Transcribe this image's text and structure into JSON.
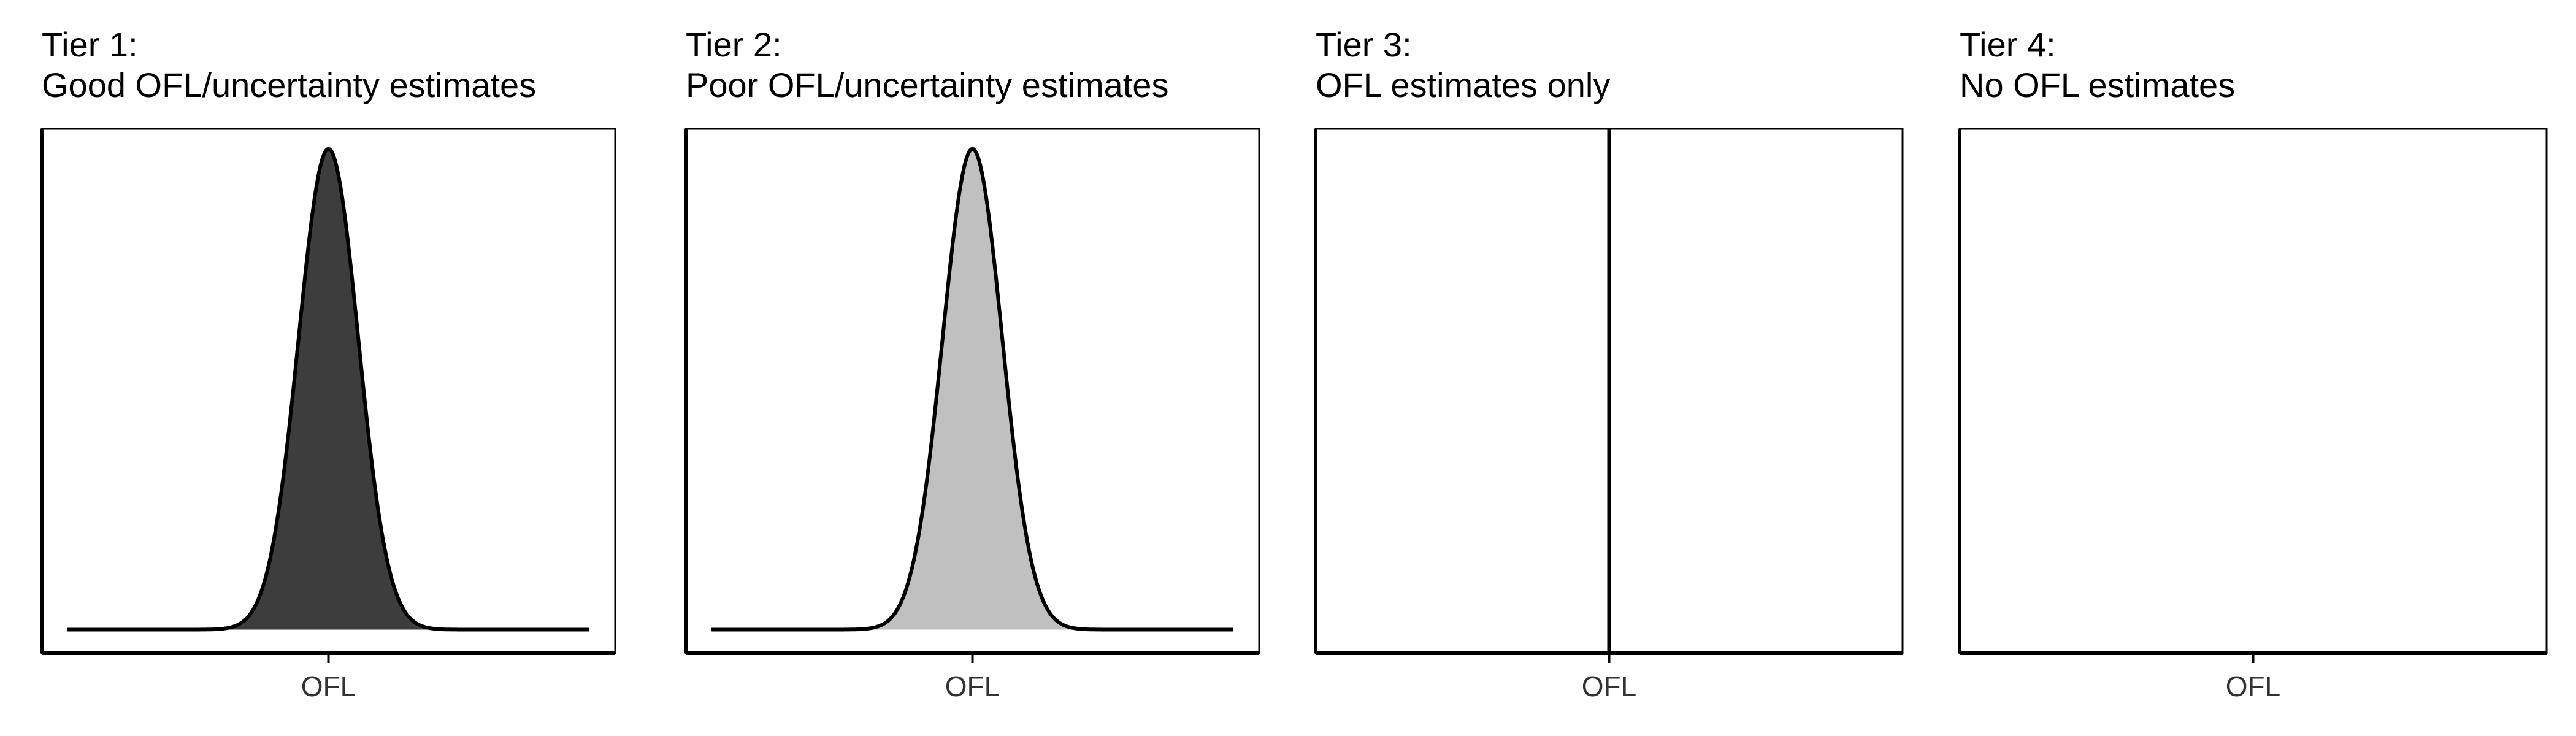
{
  "chart_data": [
    {
      "type": "area",
      "title_line1": "Tier 1:",
      "title_line2": "Good OFL/uncertainty estimates",
      "x_tick_label": "OFL",
      "distribution": "bell",
      "fill_color": "#3d3d3d",
      "peak_height": 0.96,
      "spread": 0.052,
      "shaded_halfwidth": 0.18,
      "vertical_line": false
    },
    {
      "type": "area",
      "title_line1": "Tier 2:",
      "title_line2": "Poor OFL/uncertainty estimates",
      "x_tick_label": "OFL",
      "distribution": "bell",
      "fill_color": "#c0c0c0",
      "peak_height": 0.96,
      "spread": 0.052,
      "shaded_halfwidth": 0.18,
      "vertical_line": false
    },
    {
      "type": "line",
      "title_line1": "Tier 3:",
      "title_line2": "OFL estimates only",
      "x_tick_label": "OFL",
      "distribution": "none",
      "vertical_line": true
    },
    {
      "type": "line",
      "title_line1": "Tier 4:",
      "title_line2": "No OFL estimates",
      "x_tick_label": "OFL",
      "distribution": "none",
      "vertical_line": false
    }
  ],
  "colors": {
    "axis": "#000000",
    "curve": "#000000",
    "tick_text": "#333333"
  }
}
